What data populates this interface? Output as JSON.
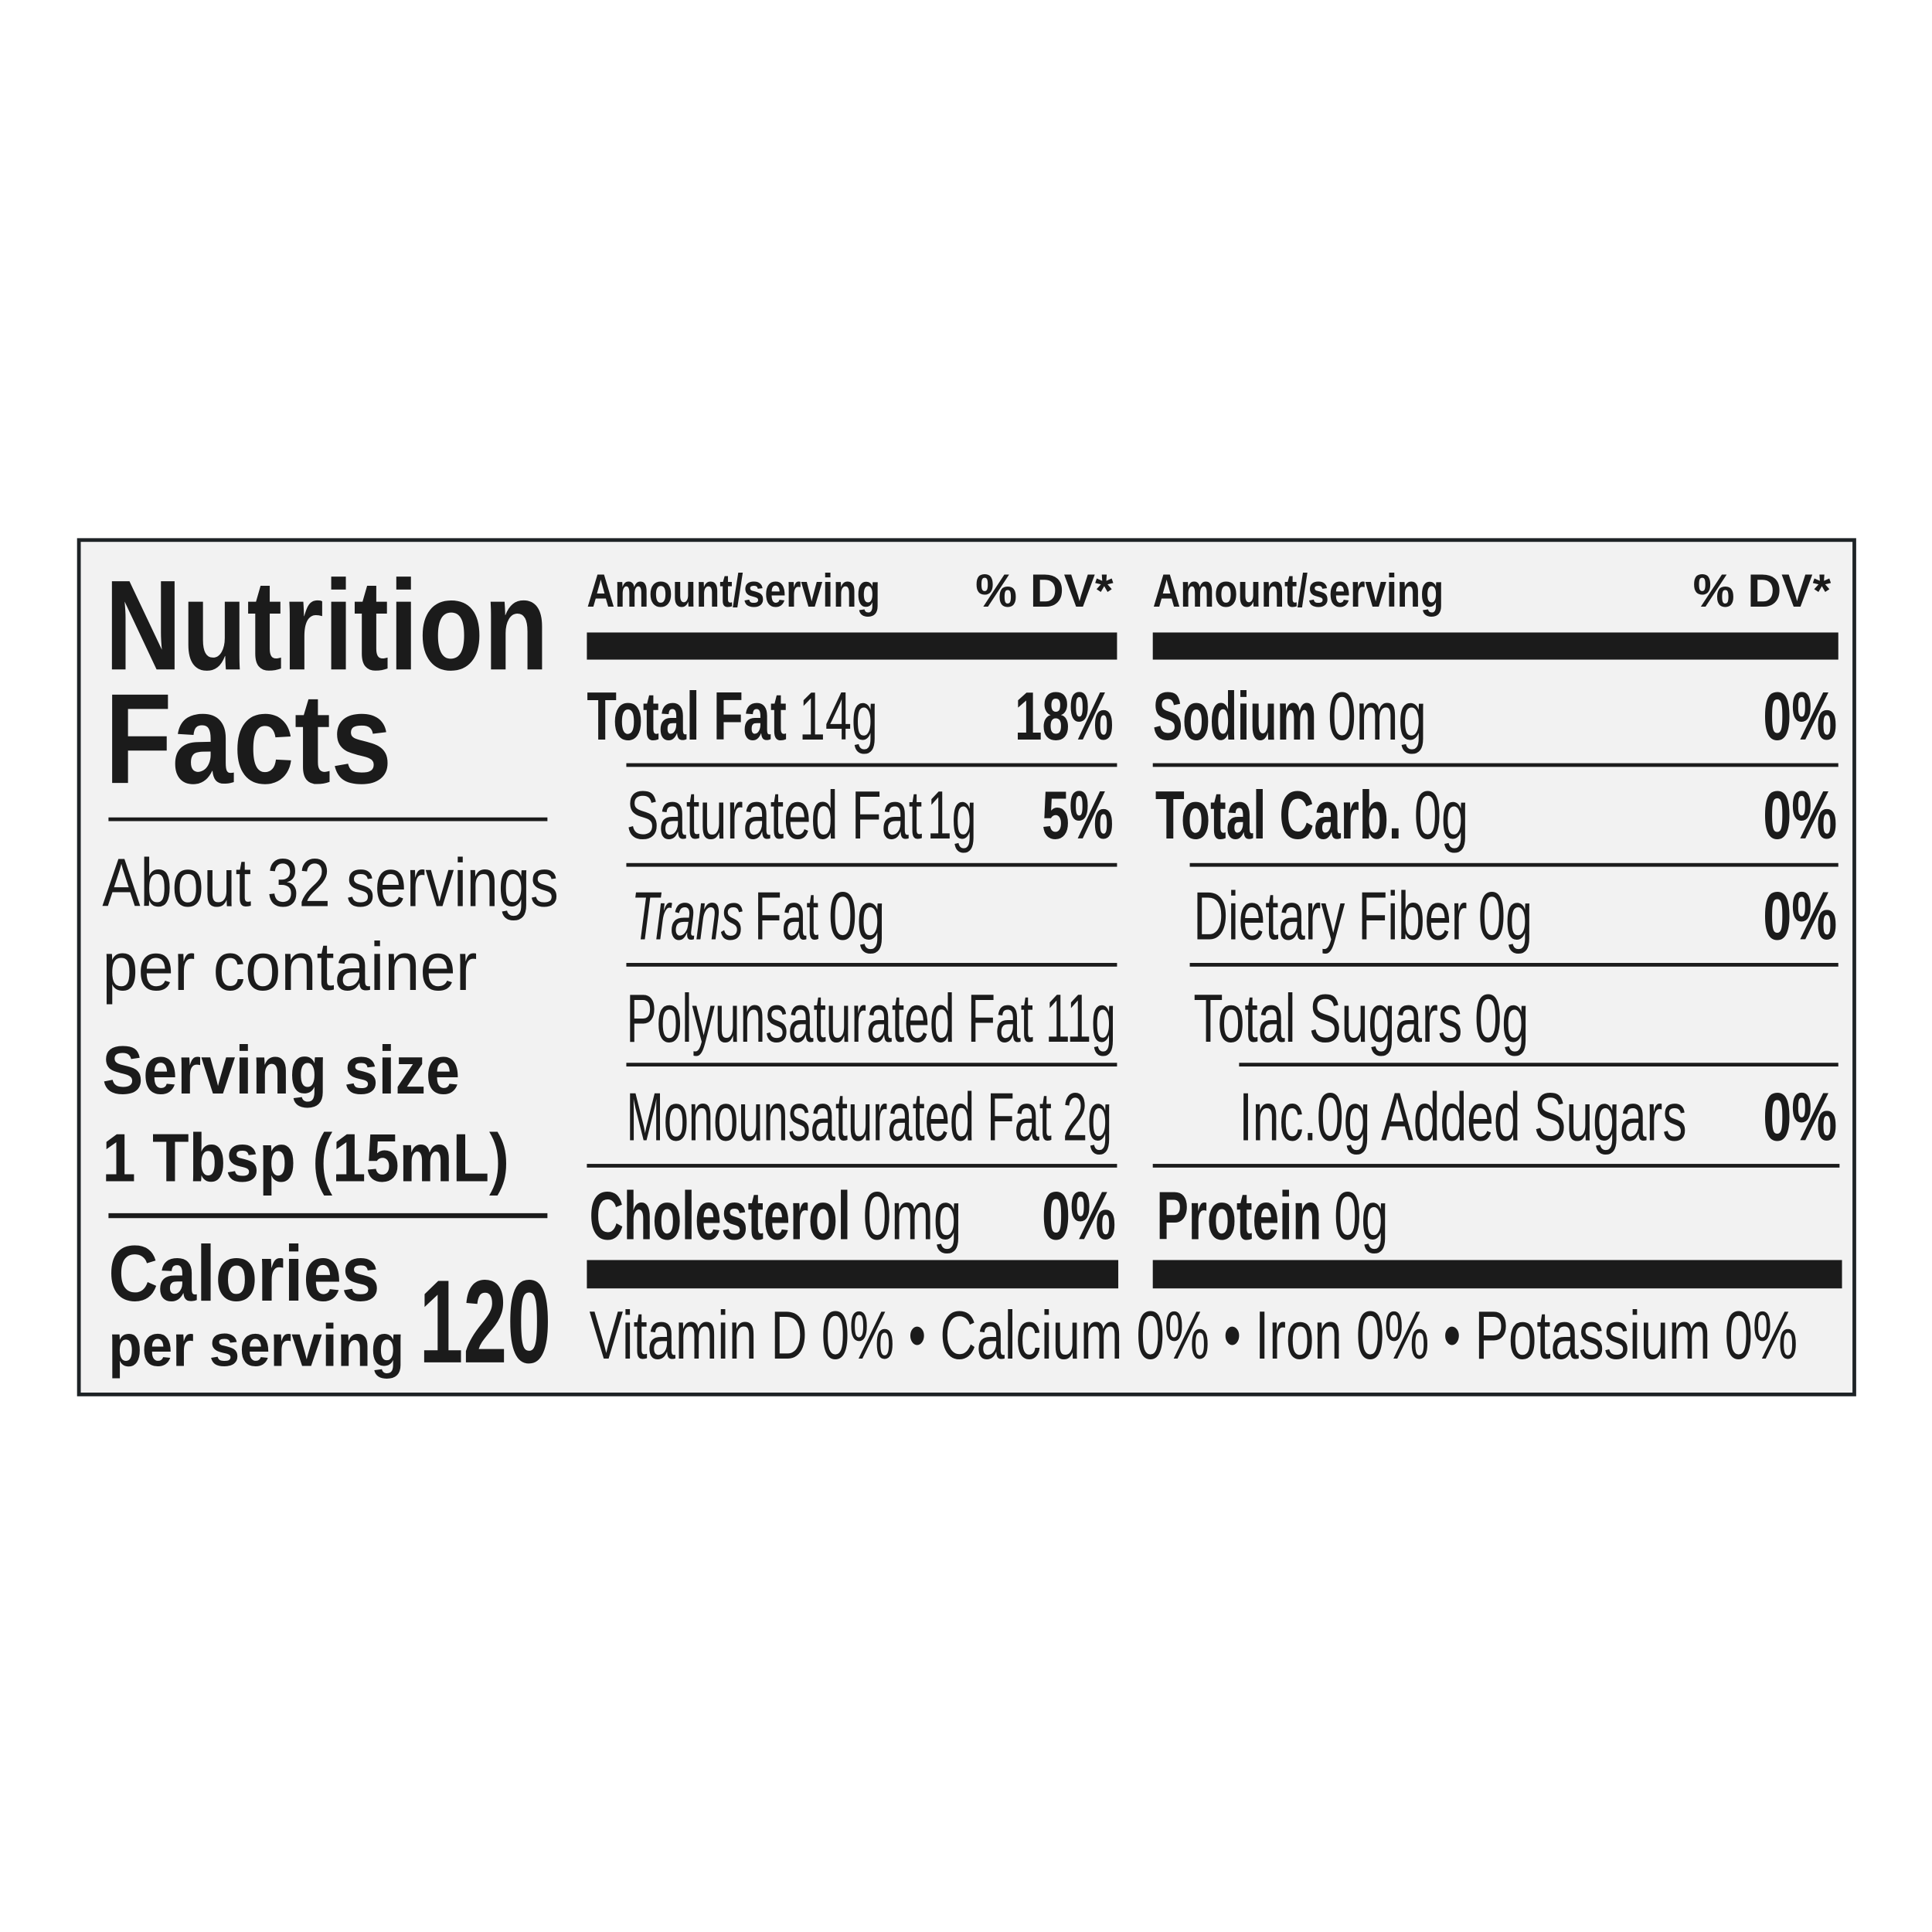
{
  "header": {
    "title_line1": "Nutrition",
    "title_line2": "Facts",
    "servings_line1": "About 32 servings",
    "servings_line2": "per container",
    "serving_size_label": "Serving size",
    "serving_size_value": "1 Tbsp (15mL)",
    "calories_label": "Calories",
    "calories_sub": "per serving",
    "calories_value": "120"
  },
  "left_column": {
    "amount_heading": "Amount/serving",
    "dv_heading": "% DV*",
    "rows": [
      {
        "name": "Total Fat",
        "amount": "14g",
        "dv": "18%"
      },
      {
        "name": "Saturated Fat",
        "amount": "1g",
        "dv": "5%"
      },
      {
        "name_italic": "Trans",
        "name": "Fat",
        "amount": "0g"
      },
      {
        "name": "Polyunsaturated Fat",
        "amount": "11g"
      },
      {
        "name": "Monounsaturated Fat",
        "amount": "2g"
      },
      {
        "name": "Cholesterol",
        "amount": "0mg",
        "dv": "0%"
      }
    ]
  },
  "right_column": {
    "amount_heading": "Amount/serving",
    "dv_heading": "% DV*",
    "rows": [
      {
        "name": "Sodium",
        "amount": "0mg",
        "dv": "0%"
      },
      {
        "name": "Total Carb.",
        "amount": "0g",
        "dv": "0%"
      },
      {
        "name": "Dietary Fiber",
        "amount": "0g",
        "dv": "0%"
      },
      {
        "name": "Total Sugars",
        "amount": "0g"
      },
      {
        "name": "Inc.0g Added Sugars",
        "dv": "0%"
      },
      {
        "name": "Protein",
        "amount": "0g"
      }
    ]
  },
  "footer": "Vitamin D 0% • Calcium 0% • Iron 0% • Potassium 0%"
}
